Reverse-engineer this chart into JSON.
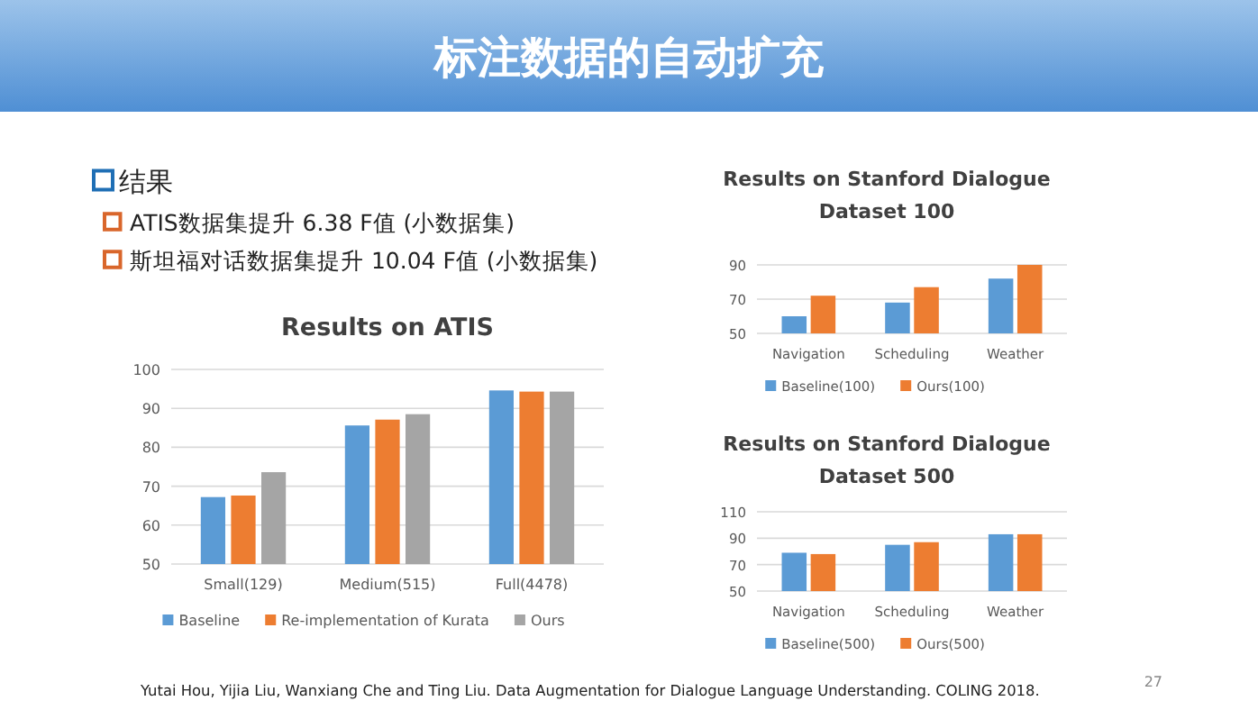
{
  "chart_data": [
    {
      "type": "other",
      "title": "标注数据的自动扩充",
      "annotations": [
        "结果",
        "ATIS数据集提升 6.38 F值 (小数据集)",
        "斯坦福对话数据集提升 10.04 F值 (小数据集)",
        "Yutai Hou, Yijia Liu, Wanxiang Che and Ting Liu. Data Augmentation for Dialogue Language Understanding. COLING 2018.",
        "27"
      ]
    },
    {
      "type": "bar",
      "title": "Results on ATIS",
      "categories": [
        "Small(129)",
        "Medium(515)",
        "Full(4478)"
      ],
      "series": [
        {
          "name": "Baseline",
          "color": "#5b9bd5",
          "values": [
            67.2,
            85.6,
            94.6
          ]
        },
        {
          "name": "Re-implementation of Kurata",
          "color": "#ed7d31",
          "values": [
            67.6,
            87.1,
            94.3
          ]
        },
        {
          "name": "Ours",
          "color": "#a5a5a5",
          "values": [
            73.6,
            88.5,
            94.3
          ]
        }
      ],
      "ylim": [
        50,
        100
      ],
      "yticks": [
        50,
        60,
        70,
        80,
        90,
        100
      ],
      "grid": "y",
      "legend": "bottom"
    },
    {
      "type": "bar",
      "title": "Results on Stanford Dialogue Dataset 100",
      "categories": [
        "Navigation",
        "Scheduling",
        "Weather"
      ],
      "series": [
        {
          "name": "Baseline(100)",
          "color": "#5b9bd5",
          "values": [
            60,
            68,
            82
          ]
        },
        {
          "name": "Ours(100)",
          "color": "#ed7d31",
          "values": [
            72,
            77,
            90
          ]
        }
      ],
      "ylim": [
        50,
        90
      ],
      "yticks": [
        50,
        70,
        90
      ],
      "grid": "y",
      "legend": "bottom"
    },
    {
      "type": "bar",
      "title": "Results on Stanford Dialogue Dataset 500",
      "categories": [
        "Navigation",
        "Scheduling",
        "Weather"
      ],
      "series": [
        {
          "name": "Baseline(500)",
          "color": "#5b9bd5",
          "values": [
            79,
            85,
            93
          ]
        },
        {
          "name": "Ours(500)",
          "color": "#ed7d31",
          "values": [
            78,
            87,
            93
          ]
        }
      ],
      "ylim": [
        50,
        110
      ],
      "yticks": [
        50,
        70,
        90,
        110
      ],
      "grid": "y",
      "legend": "bottom"
    }
  ]
}
